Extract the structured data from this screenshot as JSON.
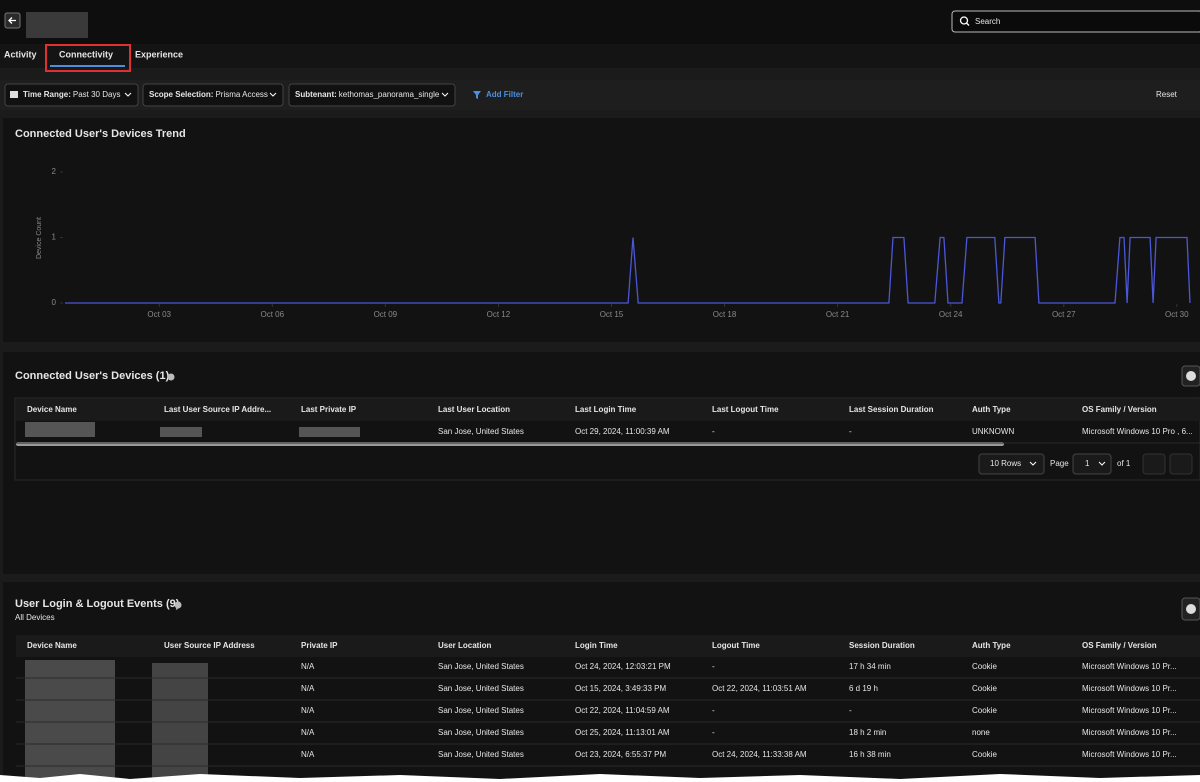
{
  "header": {
    "search_placeholder": "Search"
  },
  "tabs": [
    "Activity",
    "Connectivity",
    "Experience"
  ],
  "active_tab": 1,
  "filters": [
    {
      "label": "Time Range:",
      "value": "Past 30 Days"
    },
    {
      "label": "Scope Selection:",
      "value": "Prisma Access"
    },
    {
      "label": "Subtenant:",
      "value": "kethomas_panorama_single"
    }
  ],
  "add_filter": "Add Filter",
  "reset": "Reset",
  "trend": {
    "type": "line",
    "title": "Connected User's Devices Trend",
    "y_label": "Device Count",
    "color": "#4b57d8",
    "x": [
      0.5,
      15.44,
      15.57,
      15.71,
      22.36,
      22.47,
      22.76,
      22.87,
      23.58,
      23.72,
      23.82,
      23.93,
      24.3,
      24.43,
      25.17,
      25.28,
      25.33,
      25.44,
      26.24,
      26.34,
      28.36,
      28.49,
      28.6,
      28.68,
      28.76,
      29.29,
      29.37,
      29.45,
      30.27,
      30.35
    ],
    "values": [
      0,
      0,
      1,
      0,
      0,
      1,
      1,
      0,
      0,
      1,
      1,
      0,
      0,
      1,
      1,
      0,
      0,
      1,
      1,
      0,
      0,
      1,
      1,
      0,
      1,
      1,
      0,
      1,
      1,
      0
    ],
    "xlim": [
      0.5,
      30.35
    ],
    "ylim": [
      0,
      2
    ],
    "yticks": [
      0,
      1,
      2
    ],
    "xticks": [
      {
        "value": 3,
        "label": "Oct 03"
      },
      {
        "value": 6,
        "label": "Oct 06"
      },
      {
        "value": 9,
        "label": "Oct 09"
      },
      {
        "value": 12,
        "label": "Oct 12"
      },
      {
        "value": 15,
        "label": "Oct 15"
      },
      {
        "value": 18,
        "label": "Oct 18"
      },
      {
        "value": 21,
        "label": "Oct 21"
      },
      {
        "value": 24,
        "label": "Oct 24"
      },
      {
        "value": 27,
        "label": "Oct 27"
      },
      {
        "value": 30,
        "label": "Oct 30"
      }
    ]
  },
  "devices": {
    "title": "Connected User's Devices (1)",
    "columns": [
      "Device Name",
      "Last User Source IP Addre...",
      "Last Private IP",
      "Last User Location",
      "Last Login Time",
      "Last Logout Time",
      "Last Session Duration",
      "Auth Type",
      "OS Family / Version"
    ],
    "rows": [
      [
        "San Jose, United States",
        "Oct 29, 2024, 11:00:39 AM",
        "-",
        "-",
        "UNKNOWN",
        "Microsoft Windows 10 Pro , 6..."
      ]
    ],
    "page_size": "10 Rows",
    "page_label": "Page",
    "page": "1",
    "page_of": "of 1"
  },
  "events": {
    "title": "User Login & Logout Events (9)",
    "subtitle": "All Devices",
    "columns": [
      "Device Name",
      "User Source IP Address",
      "Private IP",
      "User Location",
      "Login Time",
      "Logout Time",
      "Session Duration",
      "Auth Type",
      "OS Family / Version"
    ],
    "rows": [
      [
        "N/A",
        "San Jose, United States",
        "Oct 24, 2024, 12:03:21 PM",
        "-",
        "17 h 34 min",
        "Cookie",
        "Microsoft Windows 10 Pr..."
      ],
      [
        "N/A",
        "San Jose, United States",
        "Oct 15, 2024, 3:49:33 PM",
        "Oct 22, 2024, 11:03:51 AM",
        "6 d 19 h",
        "Cookie",
        "Microsoft Windows 10 Pr..."
      ],
      [
        "N/A",
        "San Jose, United States",
        "Oct 22, 2024, 11:04:59 AM",
        "-",
        "-",
        "Cookie",
        "Microsoft Windows 10 Pr..."
      ],
      [
        "N/A",
        "San Jose, United States",
        "Oct 25, 2024, 11:13:01 AM",
        "-",
        "18 h 2 min",
        "none",
        "Microsoft Windows 10 Pr..."
      ],
      [
        "N/A",
        "San Jose, United States",
        "Oct 23, 2024, 6:55:37 PM",
        "Oct 24, 2024, 11:33:38 AM",
        "16 h 38 min",
        "Cookie",
        "Microsoft Windows 10 Pr..."
      ]
    ]
  }
}
